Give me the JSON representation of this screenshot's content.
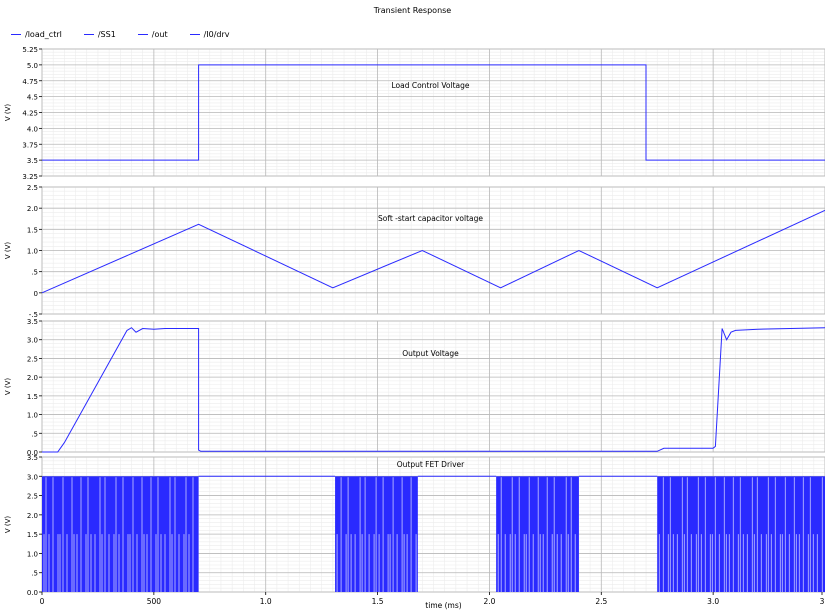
{
  "title": "Transient Response",
  "legend": [
    {
      "label": "/load_ctrl",
      "color": "#2a2aff"
    },
    {
      "label": "/SS1",
      "color": "#2a2aff"
    },
    {
      "label": "/out",
      "color": "#2a2aff"
    },
    {
      "label": "/I0/drv",
      "color": "#2a2aff"
    }
  ],
  "chart_data": {
    "type": "line",
    "title": "Transient Response",
    "xlabel": "time (ms)",
    "x_ticks": [
      "0",
      "500",
      "1.0",
      "1.5",
      "2.0",
      "2.5",
      "3.0",
      "3"
    ],
    "xlim_ms": [
      0,
      3.5
    ],
    "grid": true,
    "line_color": "#2a2aff",
    "panels": [
      {
        "name": "/load_ctrl",
        "annotation": "Load Control Voltage",
        "ylabel": "V (V)",
        "ylim": [
          3.25,
          5.25
        ],
        "y_ticks": [
          "3.25",
          "3.5",
          "3.75",
          "4.0",
          "4.25",
          "4.5",
          "4.75",
          "5.0",
          "5.25"
        ],
        "x": [
          0,
          0.7,
          0.7,
          2.7,
          2.7,
          3.5
        ],
        "y": [
          3.5,
          3.5,
          5.0,
          5.0,
          3.5,
          3.5
        ]
      },
      {
        "name": "/SS1",
        "annotation": "Soft -start capacitor voltage",
        "ylabel": "V (V)",
        "ylim": [
          -0.5,
          2.5
        ],
        "y_ticks": [
          "-.5",
          "0",
          ".5",
          "1.0",
          "1.5",
          "2.0",
          "2.5"
        ],
        "x": [
          0,
          0.7,
          1.3,
          1.7,
          2.05,
          2.4,
          2.75,
          3.5
        ],
        "y": [
          0,
          1.62,
          0.12,
          1.0,
          0.12,
          1.0,
          0.12,
          1.95
        ]
      },
      {
        "name": "/out",
        "annotation": "Output Voltage",
        "ylabel": "V (V)",
        "ylim": [
          0,
          3.5
        ],
        "y_ticks": [
          "0.0",
          ".5",
          "1.0",
          "1.5",
          "2.0",
          "2.5",
          "3.0",
          "3.5"
        ],
        "x": [
          0,
          0.07,
          0.1,
          0.38,
          0.4,
          0.42,
          0.45,
          0.5,
          0.55,
          0.6,
          0.7,
          0.7,
          0.71,
          2.75,
          2.78,
          3.0,
          3.01,
          3.04,
          3.06,
          3.08,
          3.1,
          3.2,
          3.5
        ],
        "y": [
          0,
          0,
          0.25,
          3.25,
          3.32,
          3.2,
          3.3,
          3.28,
          3.3,
          3.3,
          3.3,
          0.05,
          0.02,
          0.02,
          0.1,
          0.1,
          0.15,
          3.3,
          3.0,
          3.2,
          3.25,
          3.28,
          3.32
        ]
      },
      {
        "name": "/I0/drv",
        "annotation": "Output FET Driver",
        "ylabel": "V (V)",
        "ylim": [
          0,
          3.5
        ],
        "y_ticks": [
          "0.0",
          ".5",
          "1.0",
          "1.5",
          "2.0",
          "2.5",
          "3.0",
          "3.5"
        ],
        "high_level": 3.0,
        "low_level": 0,
        "pwm_bursts_ms": [
          [
            0,
            0.7
          ],
          [
            1.31,
            1.68
          ],
          [
            2.03,
            2.4
          ],
          [
            2.75,
            3.5
          ]
        ],
        "idle_level": 3.0
      }
    ]
  }
}
